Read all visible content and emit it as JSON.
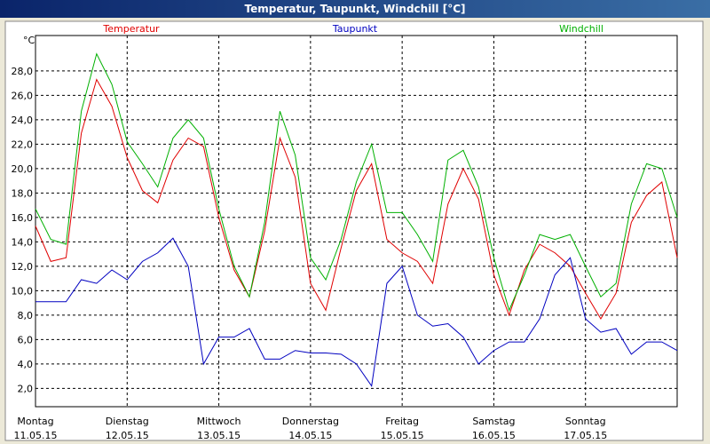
{
  "chart_data": {
    "type": "line",
    "title": "Temperatur, Taupunkt, Windchill [°C]",
    "y_unit_label": "°C",
    "x": [
      0,
      4,
      8,
      12,
      16,
      20,
      24,
      28,
      32,
      36,
      40,
      44,
      48,
      52,
      56,
      60,
      64,
      68,
      72,
      76,
      80,
      84,
      88,
      92,
      96,
      100,
      104,
      108,
      112,
      116,
      120,
      124,
      128,
      132,
      136,
      140,
      144,
      148,
      152,
      156,
      160,
      164,
      168
    ],
    "series": [
      {
        "name": "Temperatur",
        "color": "#e00000",
        "values": [
          15.3,
          12.4,
          12.7,
          22.9,
          27.3,
          25.1,
          20.9,
          18.2,
          17.2,
          20.7,
          22.5,
          21.8,
          16.0,
          11.7,
          9.5,
          14.9,
          22.5,
          19.3,
          10.6,
          8.4,
          13.5,
          18.2,
          20.4,
          14.2,
          13.1,
          12.4,
          10.6,
          17.1,
          20.0,
          17.5,
          11.3,
          8.0,
          11.7,
          13.8,
          13.1,
          12.0,
          9.8,
          7.7,
          9.8,
          15.6,
          17.8,
          18.9,
          12.7
        ]
      },
      {
        "name": "Taupunkt",
        "color": "#0000c0",
        "values": [
          9.1,
          9.1,
          9.1,
          10.9,
          10.6,
          11.7,
          10.9,
          12.4,
          13.1,
          14.3,
          12.0,
          4.0,
          6.2,
          6.2,
          6.9,
          4.4,
          4.4,
          5.1,
          4.9,
          4.9,
          4.8,
          4.0,
          2.2,
          10.6,
          12.0,
          8.0,
          7.1,
          7.3,
          6.2,
          4.0,
          5.1,
          5.8,
          5.8,
          7.7,
          11.3,
          12.7,
          7.7,
          6.6,
          6.9,
          4.8,
          5.8,
          5.8,
          5.1
        ]
      },
      {
        "name": "Windchill",
        "color": "#00b000",
        "values": [
          16.7,
          14.2,
          13.8,
          24.7,
          29.4,
          26.9,
          22.2,
          20.4,
          18.5,
          22.5,
          24.0,
          22.5,
          16.7,
          12.0,
          9.5,
          15.6,
          24.7,
          21.1,
          12.7,
          10.9,
          14.2,
          18.9,
          22.0,
          16.4,
          16.4,
          14.6,
          12.4,
          20.7,
          21.5,
          18.5,
          12.7,
          8.4,
          11.3,
          14.6,
          14.2,
          14.6,
          12.0,
          9.5,
          10.6,
          17.1,
          20.4,
          20.0,
          16.0
        ]
      }
    ],
    "xlim": [
      0,
      168
    ],
    "xticks": [
      {
        "value": 0,
        "label": "Montag"
      },
      {
        "value": 24,
        "label": "Dienstag"
      },
      {
        "value": 48,
        "label": "Mittwoch"
      },
      {
        "value": 72,
        "label": "Donnerstag"
      },
      {
        "value": 96,
        "label": "Freitag"
      },
      {
        "value": 120,
        "label": "Samstag"
      },
      {
        "value": 144,
        "label": "Sonntag"
      }
    ],
    "xtick_dates": [
      "11.05.15",
      "12.05.15",
      "13.05.15",
      "14.05.15",
      "15.05.15",
      "16.05.15",
      "17.05.15"
    ],
    "ylim": [
      0.5,
      30.9
    ],
    "yticks": [
      {
        "value": 2,
        "label": "2,0"
      },
      {
        "value": 4,
        "label": "4,0"
      },
      {
        "value": 6,
        "label": "6,0"
      },
      {
        "value": 8,
        "label": "8,0"
      },
      {
        "value": 10,
        "label": "10,0"
      },
      {
        "value": 12,
        "label": "12,0"
      },
      {
        "value": 14,
        "label": "14,0"
      },
      {
        "value": 16,
        "label": "16,0"
      },
      {
        "value": 18,
        "label": "18,0"
      },
      {
        "value": 20,
        "label": "20,0"
      },
      {
        "value": 22,
        "label": "22,0"
      },
      {
        "value": 24,
        "label": "24,0"
      },
      {
        "value": 26,
        "label": "26,0"
      },
      {
        "value": 28,
        "label": "28,0"
      }
    ],
    "grid": true
  }
}
